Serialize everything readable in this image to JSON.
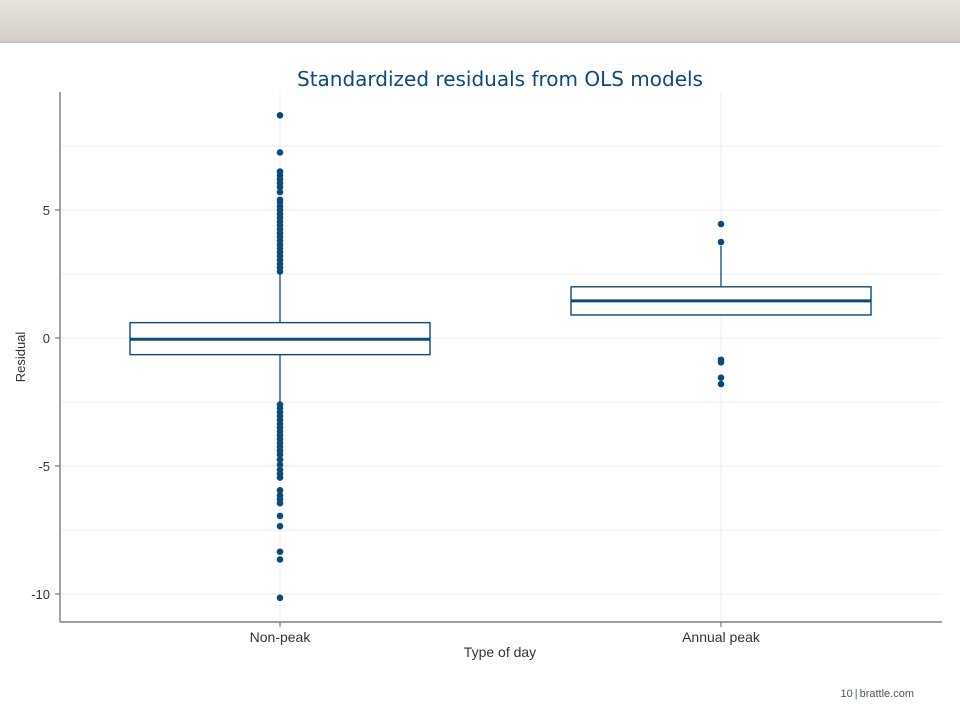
{
  "page": {
    "page_number": "10",
    "separator": "|",
    "site": "brattle.com"
  },
  "chart_data": {
    "type": "boxplot",
    "title": "Standardized residuals from OLS models",
    "xlabel": "Type of day",
    "ylabel": "Residual",
    "ylim": [
      -11,
      9.5
    ],
    "yticks": [
      -10,
      -5,
      0,
      5
    ],
    "grid": true,
    "colors": {
      "box": "#0b4a7d",
      "text_title": "#0b4a7d",
      "grid": "#ececec",
      "axis": "#666666"
    },
    "categories": [
      "Non-peak",
      "Annual peak"
    ],
    "boxes": [
      {
        "category": "Non-peak",
        "whisker_low": -2.5,
        "q1": -0.65,
        "median": -0.05,
        "q3": 0.6,
        "whisker_high": 2.5,
        "outliers": [
          8.7,
          7.25,
          6.5,
          6.35,
          6.2,
          6.05,
          5.9,
          5.7,
          5.4,
          5.3,
          5.15,
          5.0,
          4.85,
          4.7,
          4.55,
          4.4,
          4.25,
          4.1,
          3.95,
          3.8,
          3.65,
          3.5,
          3.35,
          3.2,
          3.05,
          2.9,
          2.75,
          2.6,
          -2.6,
          -2.75,
          -2.9,
          -3.05,
          -3.2,
          -3.35,
          -3.5,
          -3.65,
          -3.8,
          -3.95,
          -4.1,
          -4.25,
          -4.4,
          -4.55,
          -4.75,
          -4.95,
          -5.15,
          -5.3,
          -5.45,
          -5.95,
          -6.15,
          -6.3,
          -6.45,
          -6.95,
          -7.35,
          -8.35,
          -8.65,
          -10.15
        ]
      },
      {
        "category": "Annual peak",
        "whisker_low": 0.9,
        "q1": 0.9,
        "median": 1.45,
        "q3": 2.0,
        "whisker_high": 3.6,
        "outliers": [
          4.45,
          3.75,
          -0.85,
          -0.95,
          -1.55,
          -1.8
        ]
      }
    ]
  }
}
